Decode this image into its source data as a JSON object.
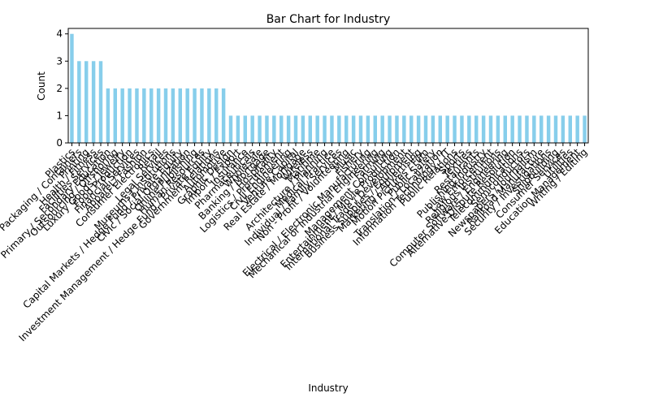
{
  "chart_data": {
    "type": "bar",
    "title": "Bar Chart for Industry",
    "x_label": "Industry",
    "y_label": "Count",
    "categories": [
      "Plastics",
      "Packaging / Containers",
      "Printing",
      "Health / Fitness",
      "Facilities Services",
      "Primary / Secondary Education",
      "Outsourcing / Offshoring",
      "Luxury Goods / Jewelry",
      "Food Production",
      "Financial Services",
      "Apparel / Fashion",
      "Consumer Electronics",
      "Retail",
      "Legal Services",
      "Museums / Institutions",
      "Capital Markets / Hedge Fund / Private Equity",
      "Civic / Social Organization",
      "Online Publishing",
      "Human Resources",
      "Investment Management / Hedge Fund / Private Equity",
      "Government Relations",
      "Automotive",
      "Graphic Design",
      "Import / Export",
      "Insurance",
      "Pharmaceuticals",
      "Wholesale",
      "Banking / Mortgage",
      "Hospitality",
      "Logistics / Procurement",
      "Civil Engineering",
      "Venture Capital",
      "Real Estate / Mortgage",
      "Wireless",
      "Maritime",
      "Architecture / Planning",
      "Medical Practice",
      "Individual / Family Services",
      "Non - Profit / Volunteering",
      "Music",
      "Fishery",
      "Electrical / Electronic Manufacturing",
      "Mechanical or Industrial Engineering",
      "Farming",
      "Management Consulting",
      "Entertainment / Movie Production",
      "International Trade / Development",
      "Business Supplies / Equipment",
      "Marketing / Advertising",
      "Motion Pictures / Film",
      "Public Safety",
      "Translation / Localization",
      "Information Technology / IT",
      "Public Relations",
      "Sports",
      "Textiles",
      "Restaurants",
      "Publishing Industry",
      "Law Enforcement",
      "Religious Institutions",
      "Computer Software / Engineering",
      "Alternative Dispute Resolution",
      "Telecommunications",
      "Semiconductors",
      "Newspapers / Journalism",
      "Railroad Manufacture",
      "Security / Investigations",
      "Shipbuilding",
      "Consumer Services",
      "Utilities",
      "Education Management",
      "Writing / Editing"
    ],
    "values": [
      4,
      3,
      3,
      3,
      3,
      2,
      2,
      2,
      2,
      2,
      2,
      2,
      2,
      2,
      2,
      2,
      2,
      2,
      2,
      2,
      2,
      2,
      1,
      1,
      1,
      1,
      1,
      1,
      1,
      1,
      1,
      1,
      1,
      1,
      1,
      1,
      1,
      1,
      1,
      1,
      1,
      1,
      1,
      1,
      1,
      1,
      1,
      1,
      1,
      1,
      1,
      1,
      1,
      1,
      1,
      1,
      1,
      1,
      1,
      1,
      1,
      1,
      1,
      1,
      1,
      1,
      1,
      1,
      1,
      1,
      1,
      1
    ],
    "color": "#87ceeb",
    "ylim": [
      0,
      4.2
    ],
    "yticks": [
      0,
      1,
      2,
      3,
      4
    ],
    "grid": false
  }
}
